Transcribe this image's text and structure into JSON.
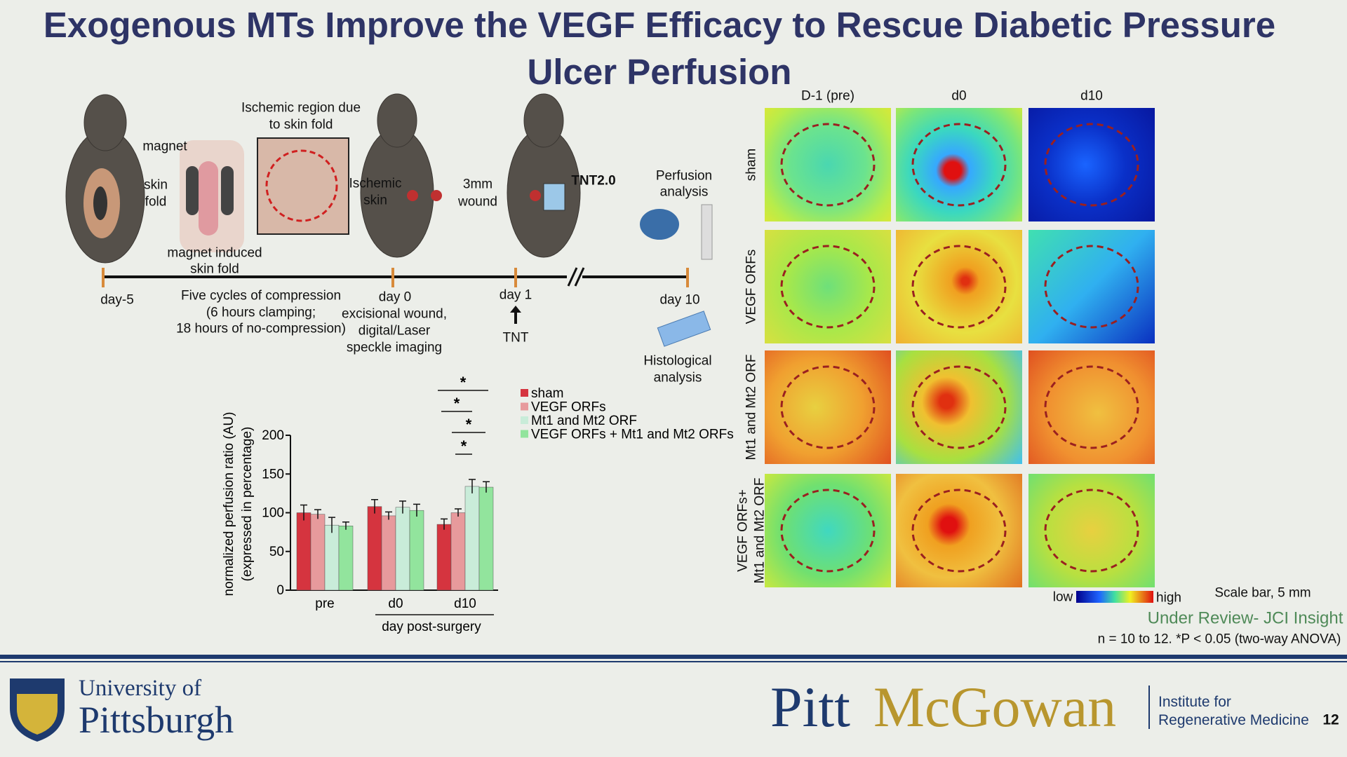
{
  "title": "Exogenous MTs Improve the VEGF Efficacy to Rescue Diabetic Pressure Ulcer Perfusion",
  "schematic": {
    "ischemic_region": [
      "Ischemic region due",
      "to skin fold"
    ],
    "magnet": "magnet",
    "skin_fold": [
      "skin",
      "fold"
    ],
    "magnet_induced": [
      "magnet induced",
      "skin fold"
    ],
    "ischemic_skin": [
      "Ischemic",
      "skin"
    ],
    "wound": [
      "3mm",
      "wound"
    ],
    "device": "TNT2.0",
    "perfusion": [
      "Perfusion",
      "analysis"
    ],
    "histology": [
      "Histological",
      "analysis"
    ],
    "days": [
      "day-5",
      "day 0",
      "day 1",
      "day 10"
    ],
    "compression": [
      "Five cycles of compression",
      "(6 hours clamping;",
      "18 hours of no-compression)"
    ],
    "day0_note": [
      "excisional wound,",
      "digital/Laser",
      "speckle imaging"
    ],
    "tnt": "TNT"
  },
  "chart_data": {
    "type": "bar",
    "categories": [
      "pre",
      "d0",
      "d10"
    ],
    "xlabel": "day post-surgery",
    "ylabel": [
      "normalized perfusion ratio (AU)",
      "(expressed in percentage)"
    ],
    "ylim": [
      0,
      200
    ],
    "yticks": [
      0,
      50,
      100,
      150,
      200
    ],
    "series": [
      {
        "name": "sham",
        "color": "#d5343f",
        "values": [
          100,
          108,
          85
        ],
        "errors": [
          10,
          9,
          7
        ]
      },
      {
        "name": "VEGF ORFs",
        "color": "#e79a9c",
        "values": [
          98,
          96,
          100
        ],
        "errors": [
          6,
          5,
          5
        ]
      },
      {
        "name": "Mt1 and Mt2 ORF",
        "color": "#c9ecd9",
        "values": [
          84,
          107,
          134
        ],
        "errors": [
          10,
          8,
          9
        ]
      },
      {
        "name": "VEGF ORFs + Mt1 and Mt2 ORFs",
        "color": "#92e49d",
        "values": [
          83,
          103,
          133
        ],
        "errors": [
          5,
          8,
          7
        ]
      }
    ],
    "annotations": [
      "*",
      "*",
      "*",
      "*"
    ]
  },
  "images": {
    "columns": [
      "D-1 (pre)",
      "d0",
      "d10"
    ],
    "rows": [
      [
        "sham"
      ],
      [
        "VEGF ORFs"
      ],
      [
        "Mt1 and Mt2 ORF"
      ],
      [
        "VEGF ORFs+",
        "Mt1 and Mt2 ORF"
      ]
    ],
    "colorbar": [
      "low",
      "high"
    ],
    "scale_bar": "Scale bar, 5 mm"
  },
  "notes": {
    "review": "Under Review- JCI Insight",
    "stats": "n = 10 to 12. *P < 0.05 (two-way ANOVA)"
  },
  "footer": {
    "university": [
      "University of",
      "Pittsburgh"
    ],
    "pitt": "Pitt",
    "mcgowan": "McGowan",
    "institute": [
      "Institute for",
      "Regenerative Medicine"
    ],
    "page": "12"
  }
}
